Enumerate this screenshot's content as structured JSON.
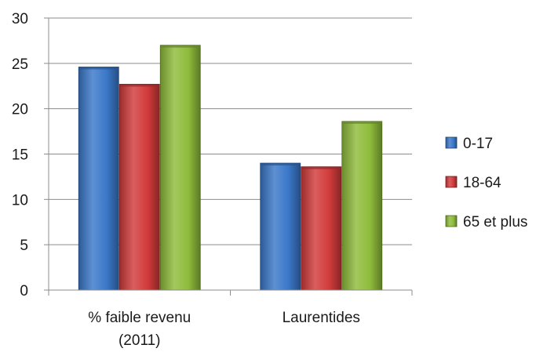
{
  "chart_data": {
    "type": "bar",
    "categories": [
      [
        "% faible revenu",
        "(2011)"
      ],
      [
        "Laurentides"
      ]
    ],
    "series": [
      {
        "name": "0-17",
        "values": [
          24.6,
          14.0
        ],
        "color": "#3a78c9"
      },
      {
        "name": "18-64",
        "values": [
          22.7,
          13.6
        ],
        "color": "#d23b3b"
      },
      {
        "name": "65 et plus",
        "values": [
          27.0,
          18.6
        ],
        "color": "#8fbc3b"
      }
    ],
    "ylim": [
      0,
      30
    ],
    "yticks": [
      "0",
      "5",
      "10",
      "15",
      "20",
      "25",
      "30"
    ],
    "grid": true,
    "legend_position": "right"
  }
}
